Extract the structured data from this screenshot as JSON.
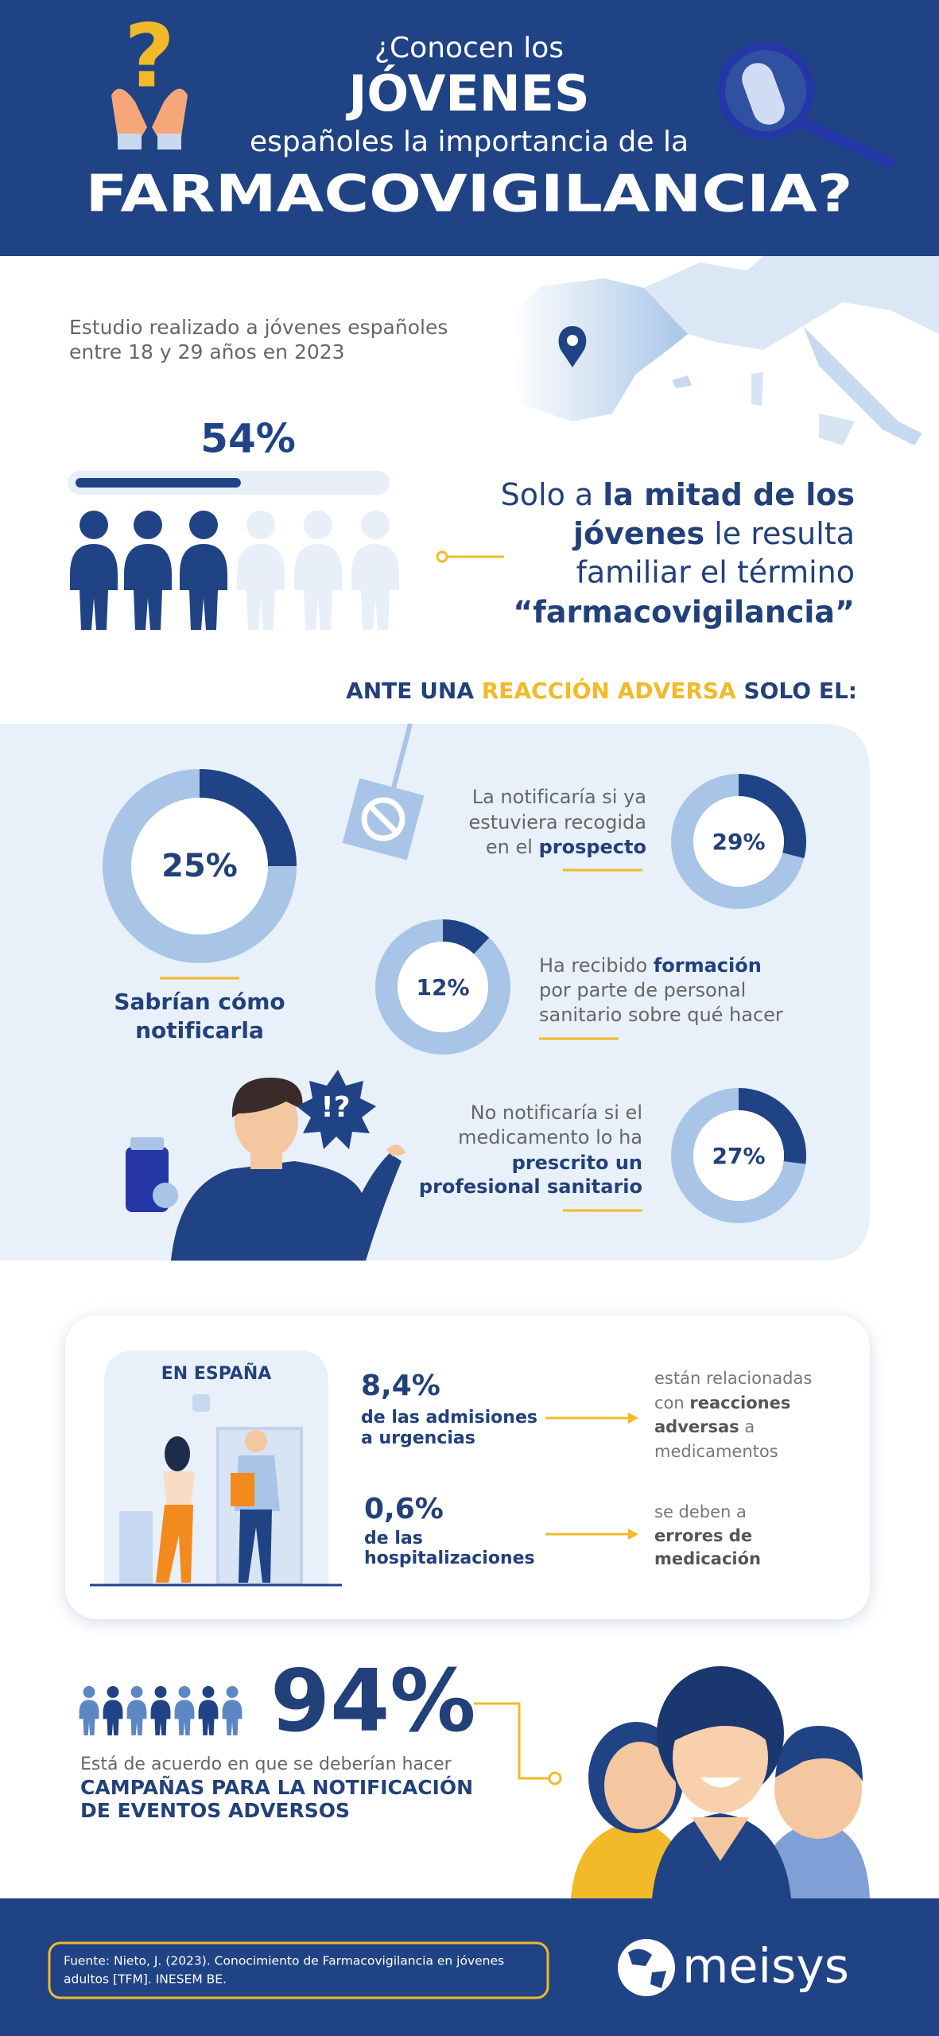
{
  "header": {
    "icon": "?",
    "lines": [
      "¿Conocen los",
      "JÓVENES",
      "españoles la importancia de la",
      "FARMACOVIGILANCIA?"
    ]
  },
  "study": {
    "description": [
      "Estudio realizado a jóvenes españoles",
      "entre 18 y 29 años en 2023"
    ],
    "percent": {
      "value": 54,
      "label": "54%"
    },
    "statement": [
      [
        "Solo a ",
        "la mitad de los"
      ],
      [
        "jóvenes",
        " le resulta"
      ],
      [
        "familiar el término"
      ],
      [
        "“farmacovigilancia”"
      ]
    ]
  },
  "reaction": {
    "heading": [
      "ANTE UNA ",
      "REACCIÓN ADVERSA",
      " SOLO EL:"
    ],
    "exclamation": "!?",
    "items": [
      {
        "value": 25,
        "label": "25%",
        "text": [
          [
            "Sabrían cómo"
          ],
          [
            "notificarla"
          ]
        ]
      },
      {
        "value": 29,
        "label": "29%",
        "text": [
          [
            "La notificaría si ya"
          ],
          [
            "estuviera recogida"
          ],
          [
            "en el ",
            "prospecto"
          ]
        ]
      },
      {
        "value": 12,
        "label": "12%",
        "text": [
          [
            "Ha recibido ",
            "formación"
          ],
          [
            "por parte de personal"
          ],
          [
            "sanitario sobre qué hacer"
          ]
        ]
      },
      {
        "value": 27,
        "label": "27%",
        "text": [
          [
            "No notificaría si el"
          ],
          [
            "medicamento lo ha"
          ],
          [
            "prescrito un"
          ],
          [
            "profesional sanitario"
          ]
        ]
      }
    ]
  },
  "spain": {
    "title": "EN ESPAÑA",
    "stats": [
      {
        "value": "8,4%",
        "subtitle": [
          "de las admisiones",
          "a urgencias"
        ],
        "detail": [
          [
            "están relacionadas"
          ],
          [
            "con ",
            "reacciones"
          ],
          [
            "adversas",
            " a"
          ],
          [
            "medicamentos"
          ]
        ]
      },
      {
        "value": "0,6%",
        "subtitle": [
          "de las",
          "hospitalizaciones"
        ],
        "detail": [
          [
            "se deben a"
          ],
          [
            "errores de"
          ],
          [
            "medicación"
          ]
        ]
      }
    ]
  },
  "campaign": {
    "percent": "94%",
    "text": "Está de acuerdo en que se deberían hacer",
    "highlight": [
      "CAMPAÑAS PARA LA NOTIFICACIÓN",
      "DE EVENTOS ADVERSOS"
    ]
  },
  "footer": {
    "source": [
      "Fuente: Nieto, J. (2023). Conocimiento de Farmacovigilancia en jóvenes",
      "adultos [TFM]. INESEM BE."
    ],
    "logo": "meisys"
  }
}
